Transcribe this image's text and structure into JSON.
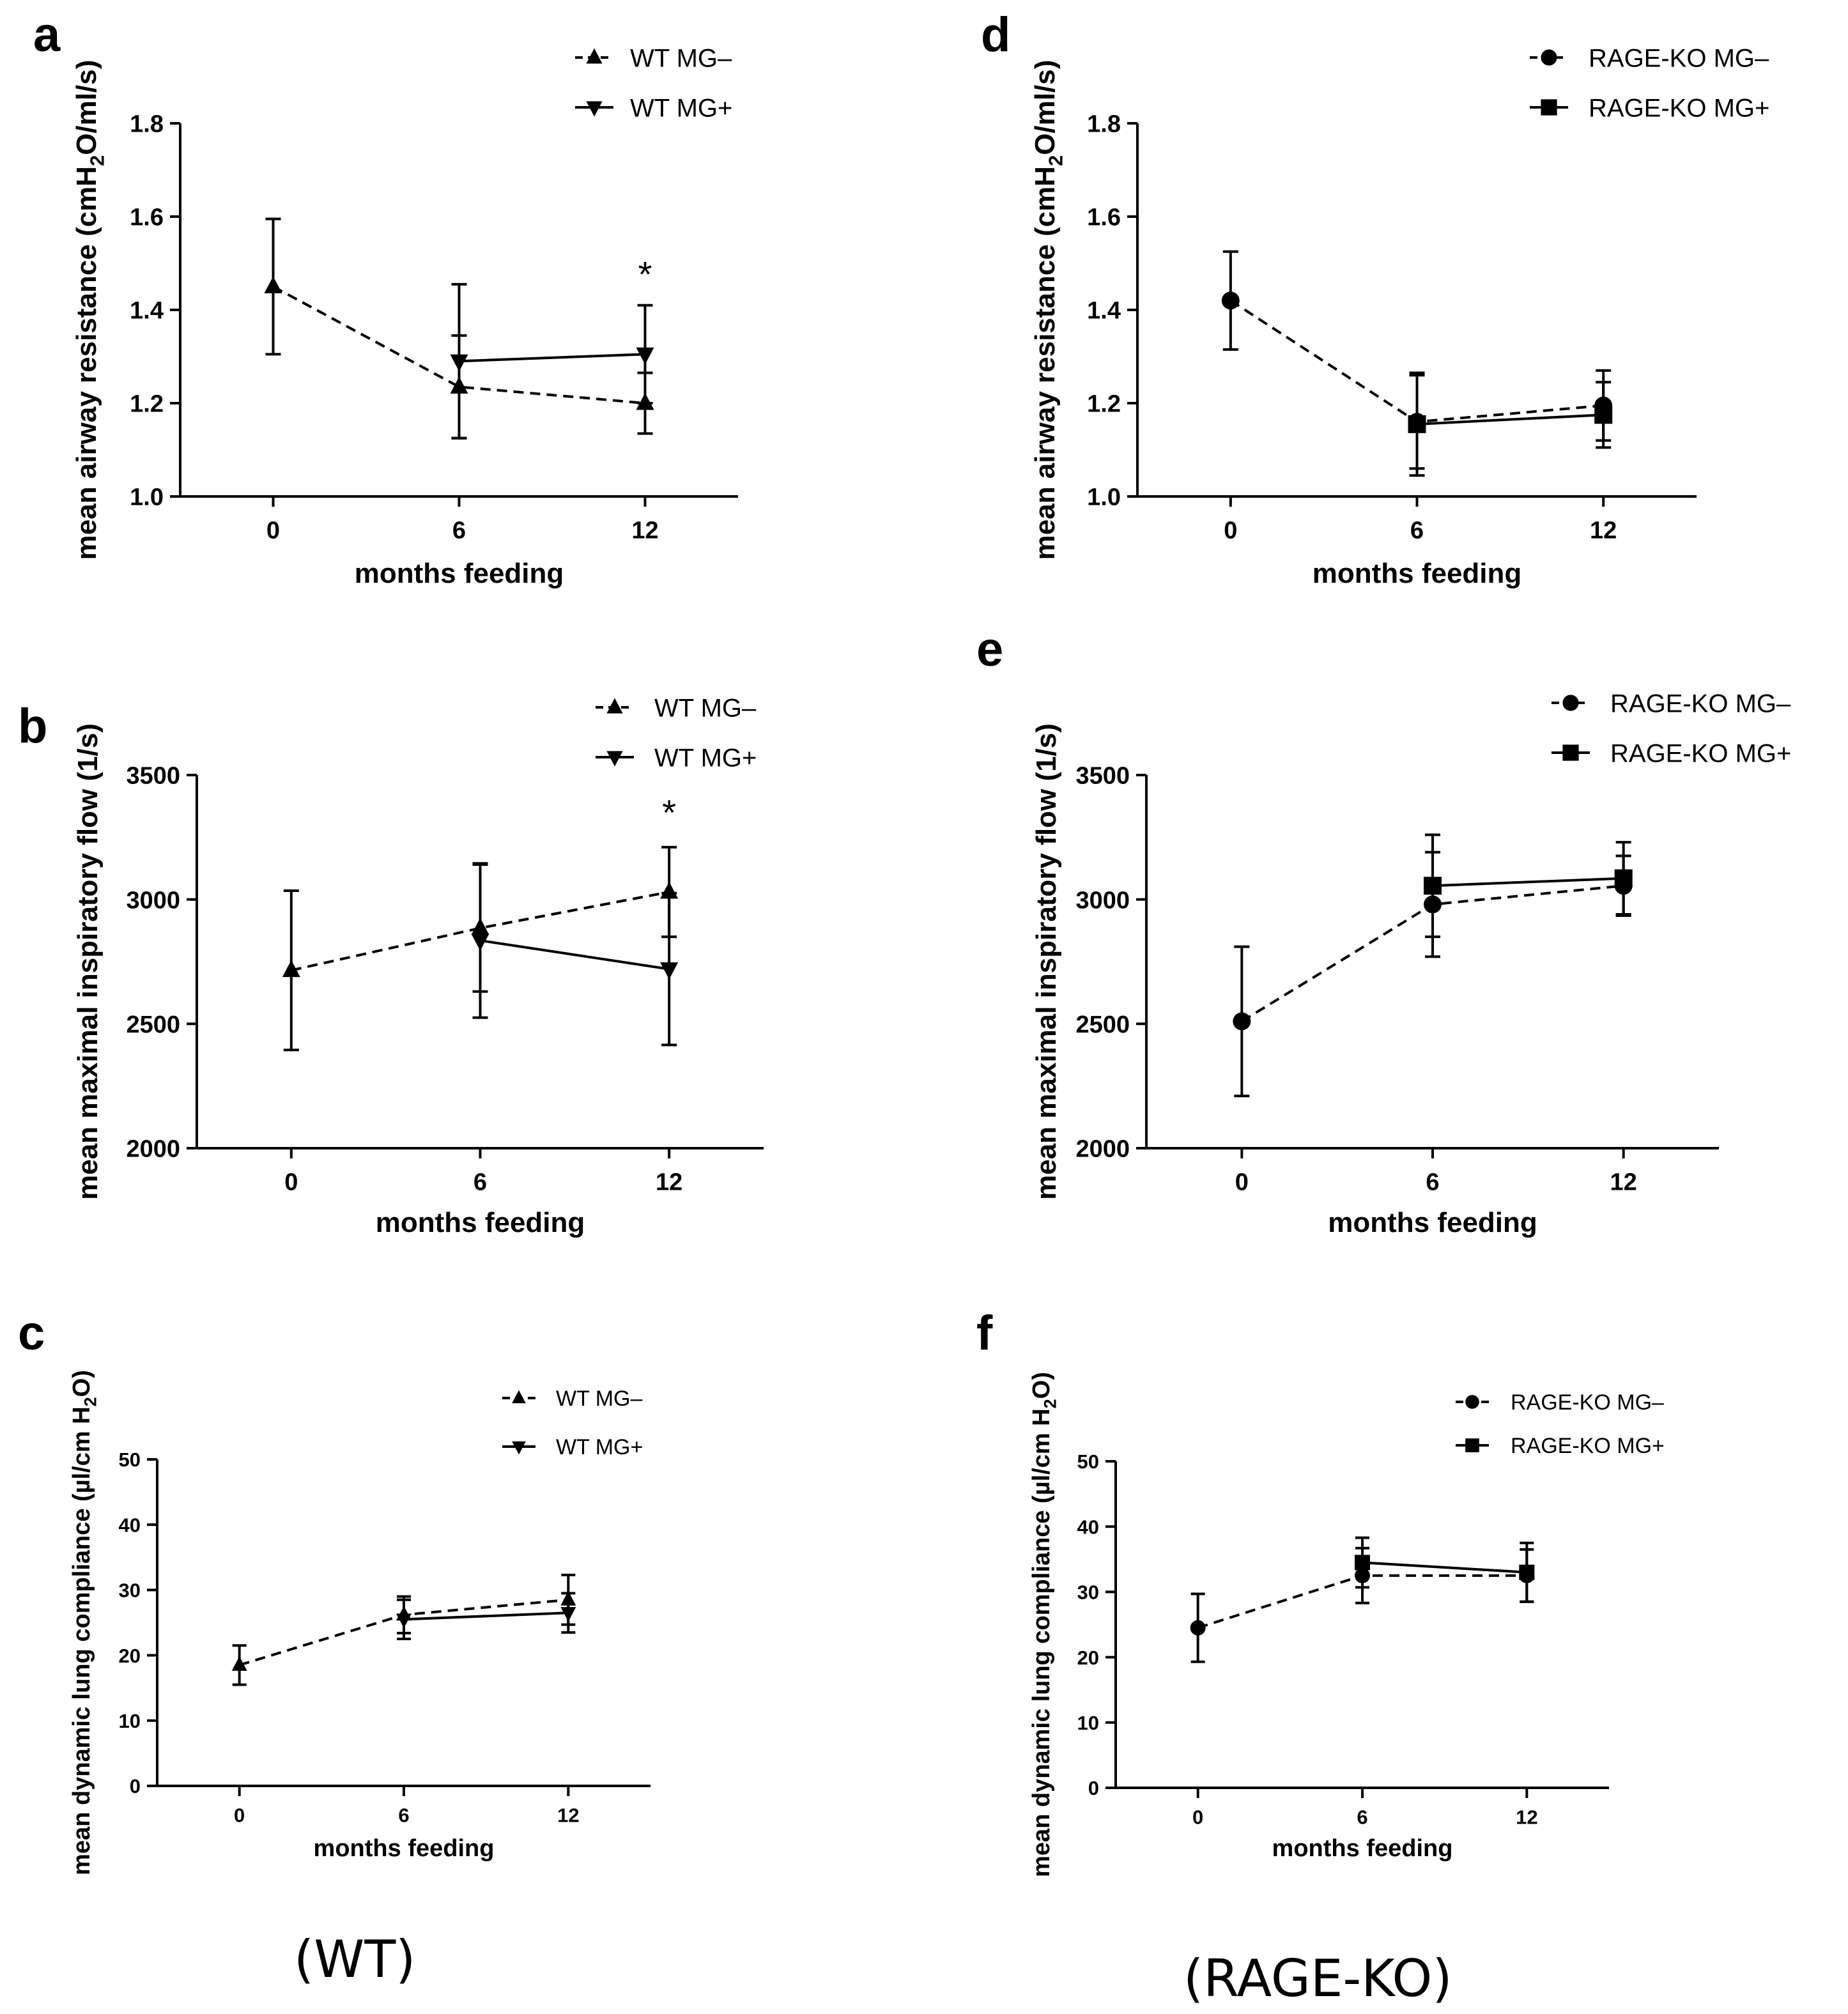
{
  "captions": {
    "wt": "(WT)",
    "ko": "(RAGE-KO)"
  },
  "chart_data": [
    {
      "id": "a",
      "panel_label": "a",
      "type": "line",
      "title": "",
      "xlabel": "months feeding",
      "ylabel_parts": [
        "mean airway resistance (cmH",
        "2",
        "O/ml/s)"
      ],
      "categories": [
        "0",
        "6",
        "12"
      ],
      "x": [
        0,
        6,
        12
      ],
      "xlim": [
        -3,
        15
      ],
      "ylim": [
        1.0,
        1.8
      ],
      "yticks": [
        1.0,
        1.2,
        1.4,
        1.6,
        1.8
      ],
      "ytick_labels": [
        "1.0",
        "1.2",
        "1.4",
        "1.6",
        "1.8"
      ],
      "grid": false,
      "legend_position": "top-right",
      "annotations": [
        {
          "text": "*",
          "x": 12,
          "y": 1.45
        }
      ],
      "series": [
        {
          "name": "WT MG–",
          "marker": "triangle-up",
          "dash": "dashed",
          "x": [
            0,
            6,
            12
          ],
          "values": [
            1.45,
            1.235,
            1.2
          ],
          "err": [
            0.145,
            0.11,
            0.065
          ]
        },
        {
          "name": "WT MG+",
          "marker": "triangle-down",
          "dash": "solid",
          "x": [
            6,
            12
          ],
          "values": [
            1.29,
            1.305
          ],
          "err": [
            0.165,
            0.105
          ]
        }
      ]
    },
    {
      "id": "b",
      "panel_label": "b",
      "type": "line",
      "title": "",
      "xlabel": "months feeding",
      "ylabel_parts": [
        "mean maximal inspiratory flow (1/s)"
      ],
      "categories": [
        "0",
        "6",
        "12"
      ],
      "x": [
        0,
        6,
        12
      ],
      "xlim": [
        -3,
        15
      ],
      "ylim": [
        2000,
        3500
      ],
      "yticks": [
        2000,
        2500,
        3000,
        3500
      ],
      "ytick_labels": [
        "2000",
        "2500",
        "3000",
        "3500"
      ],
      "grid": false,
      "legend_position": "top-right",
      "annotations": [
        {
          "text": "*",
          "x": 12,
          "y": 3300
        }
      ],
      "series": [
        {
          "name": "WT MG–",
          "marker": "triangle-up",
          "dash": "dashed",
          "x": [
            0,
            6,
            12
          ],
          "values": [
            2715,
            2885,
            3030
          ],
          "err": [
            320,
            255,
            180
          ]
        },
        {
          "name": "WT MG+",
          "marker": "triangle-down",
          "dash": "solid",
          "x": [
            6,
            12
          ],
          "values": [
            2835,
            2720
          ],
          "err": [
            310,
            305
          ]
        }
      ]
    },
    {
      "id": "c",
      "panel_label": "c",
      "type": "line",
      "title": "",
      "xlabel": "months feeding",
      "ylabel_parts": [
        "mean dynamic lung compliance (µl/cm H",
        "2",
        "O)"
      ],
      "categories": [
        "0",
        "6",
        "12"
      ],
      "x": [
        0,
        6,
        12
      ],
      "xlim": [
        -3,
        15
      ],
      "ylim": [
        0,
        50
      ],
      "yticks": [
        0,
        10,
        20,
        30,
        40,
        50
      ],
      "ytick_labels": [
        "0",
        "10",
        "20",
        "30",
        "40",
        "50"
      ],
      "grid": false,
      "legend_position": "top-right",
      "annotations": [],
      "series": [
        {
          "name": "WT MG–",
          "marker": "triangle-up",
          "dash": "dashed",
          "x": [
            0,
            6,
            12
          ],
          "values": [
            18.5,
            26.2,
            28.5
          ],
          "err": [
            3,
            2.8,
            3.8
          ]
        },
        {
          "name": "WT MG+",
          "marker": "triangle-down",
          "dash": "solid",
          "x": [
            6,
            12
          ],
          "values": [
            25.5,
            26.5
          ],
          "err": [
            3,
            3
          ]
        }
      ]
    },
    {
      "id": "d",
      "panel_label": "d",
      "type": "line",
      "title": "",
      "xlabel": "months feeding",
      "ylabel_parts": [
        "mean airway resistance (cmH",
        "2",
        "O/ml/s)"
      ],
      "categories": [
        "0",
        "6",
        "12"
      ],
      "x": [
        0,
        6,
        12
      ],
      "xlim": [
        -3,
        15
      ],
      "ylim": [
        1.0,
        1.8
      ],
      "yticks": [
        1.0,
        1.2,
        1.4,
        1.6,
        1.8
      ],
      "ytick_labels": [
        "1.0",
        "1.2",
        "1.4",
        "1.6",
        "1.8"
      ],
      "grid": false,
      "legend_position": "top-right",
      "annotations": [],
      "series": [
        {
          "name": "RAGE-KO MG–",
          "marker": "circle",
          "dash": "dashed",
          "x": [
            0,
            6,
            12
          ],
          "values": [
            1.42,
            1.16,
            1.195
          ],
          "err": [
            0.105,
            0.1,
            0.075
          ]
        },
        {
          "name": "RAGE-KO MG+",
          "marker": "square",
          "dash": "solid",
          "x": [
            6,
            12
          ],
          "values": [
            1.155,
            1.175
          ],
          "err": [
            0.11,
            0.07
          ]
        }
      ]
    },
    {
      "id": "e",
      "panel_label": "e",
      "type": "line",
      "title": "",
      "xlabel": "months feeding",
      "ylabel_parts": [
        "mean maximal inspiratory flow (1/s)"
      ],
      "categories": [
        "0",
        "6",
        "12"
      ],
      "x": [
        0,
        6,
        12
      ],
      "xlim": [
        -3,
        15
      ],
      "ylim": [
        2000,
        3500
      ],
      "yticks": [
        2000,
        2500,
        3000,
        3500
      ],
      "ytick_labels": [
        "2000",
        "2500",
        "3000",
        "3500"
      ],
      "grid": false,
      "legend_position": "top-right",
      "annotations": [],
      "series": [
        {
          "name": "RAGE-KO MG–",
          "marker": "circle",
          "dash": "dashed",
          "x": [
            0,
            6,
            12
          ],
          "values": [
            2510,
            2980,
            3055
          ],
          "err": [
            300,
            210,
            120
          ]
        },
        {
          "name": "RAGE-KO MG+",
          "marker": "square",
          "dash": "solid",
          "x": [
            6,
            12
          ],
          "values": [
            3055,
            3085
          ],
          "err": [
            205,
            145
          ]
        }
      ]
    },
    {
      "id": "f",
      "panel_label": "f",
      "type": "line",
      "title": "",
      "xlabel": "months feeding",
      "ylabel_parts": [
        "mean dynamic lung compliance (µl/cm H",
        "2",
        "O)"
      ],
      "categories": [
        "0",
        "6",
        "12"
      ],
      "x": [
        0,
        6,
        12
      ],
      "xlim": [
        -3,
        15
      ],
      "ylim": [
        0,
        50
      ],
      "yticks": [
        0,
        10,
        20,
        30,
        40,
        50
      ],
      "ytick_labels": [
        "0",
        "10",
        "20",
        "30",
        "40",
        "50"
      ],
      "grid": false,
      "legend_position": "top-right",
      "annotations": [],
      "series": [
        {
          "name": "RAGE-KO MG–",
          "marker": "circle",
          "dash": "dashed",
          "x": [
            0,
            6,
            12
          ],
          "values": [
            24.5,
            32.5,
            32.5
          ],
          "err": [
            5.2,
            4.2,
            4
          ]
        },
        {
          "name": "RAGE-KO MG+",
          "marker": "square",
          "dash": "solid",
          "x": [
            6,
            12
          ],
          "values": [
            34.5,
            33
          ],
          "err": [
            3.8,
            4.5
          ]
        }
      ]
    }
  ]
}
